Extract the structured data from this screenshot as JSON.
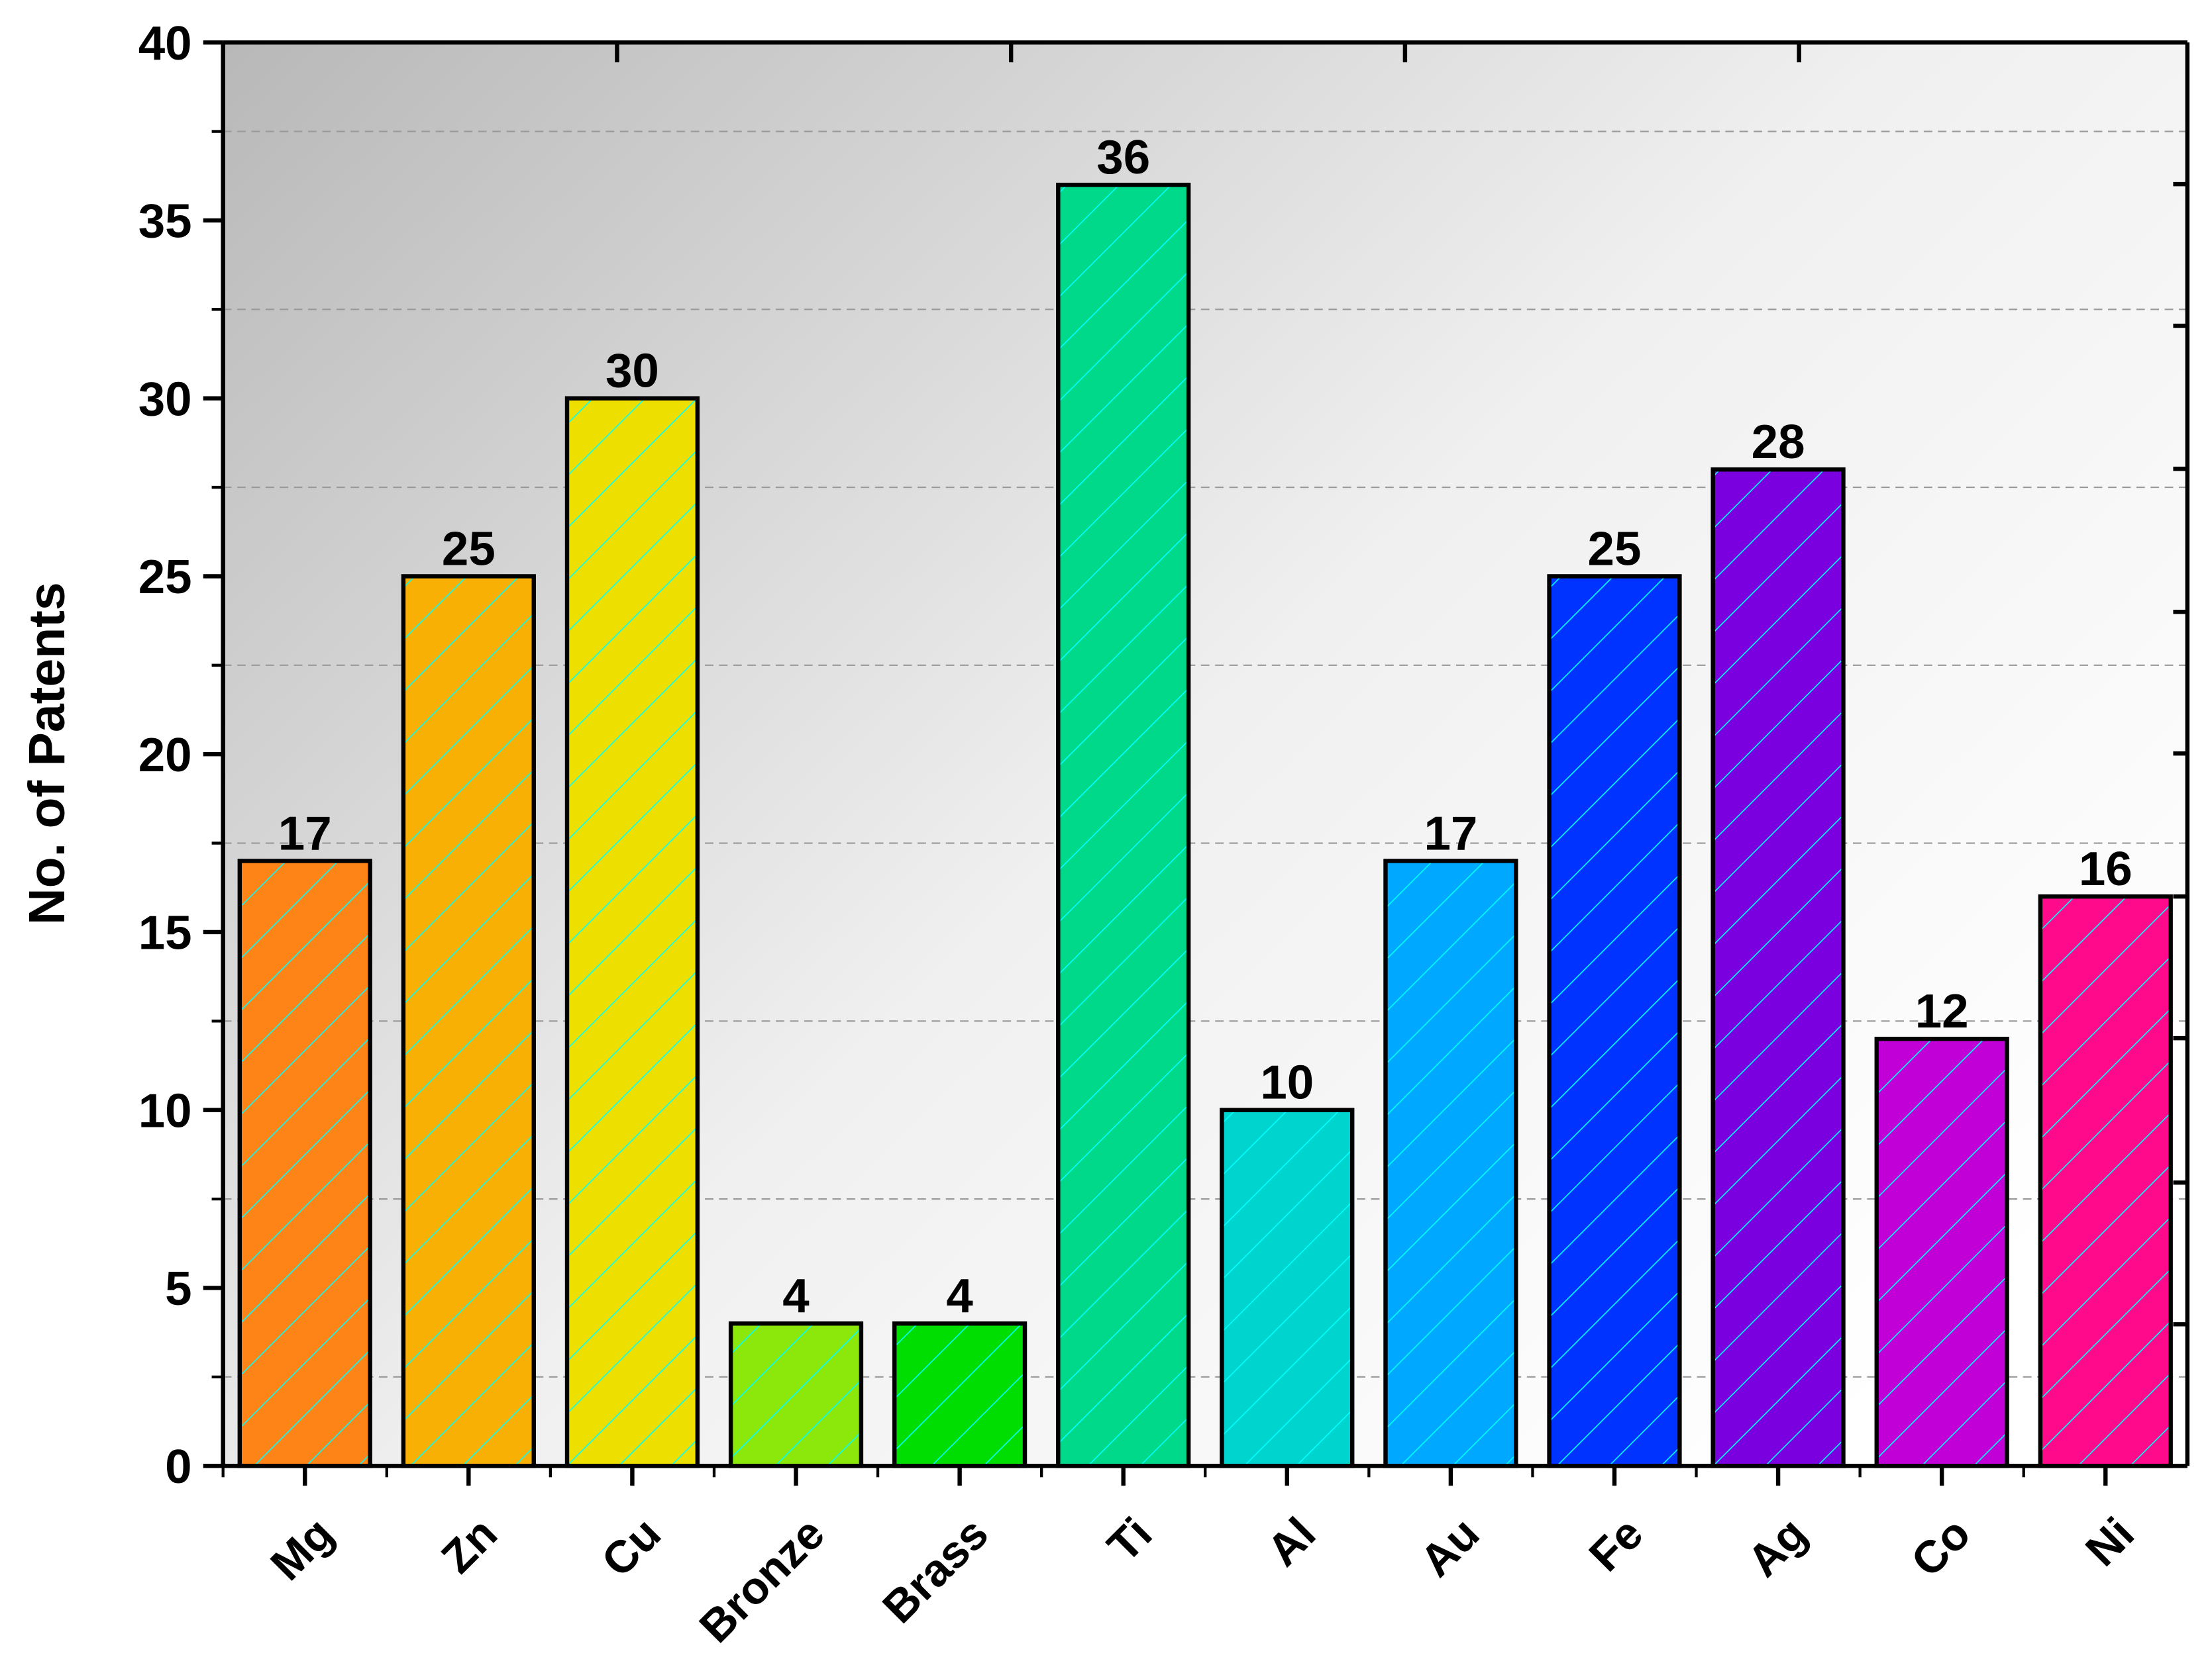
{
  "chart_data": {
    "type": "bar",
    "title": "",
    "xlabel": "",
    "ylabel": "No. of Patents",
    "ylim": [
      0,
      40
    ],
    "yticks": [
      0,
      5,
      10,
      15,
      20,
      25,
      30,
      35,
      40
    ],
    "grid": "dashed horizontal at minor ticks",
    "background": "gray-to-white gradient",
    "hatch_color": "#00FFFF",
    "categories": [
      "Mg",
      "Zn",
      "Cu",
      "Bronze",
      "Brass",
      "Ti",
      "Al",
      "Au",
      "Fe",
      "Ag",
      "Co",
      "Ni"
    ],
    "values": [
      17,
      25,
      30,
      4,
      4,
      36,
      10,
      17,
      25,
      28,
      12,
      16
    ],
    "colors": [
      "#FF8418",
      "#F9B004",
      "#EDE000",
      "#8BE80A",
      "#00DD00",
      "#00D98A",
      "#00D4CF",
      "#00A8FF",
      "#0033FF",
      "#7A00E0",
      "#C000D6",
      "#FF0A8A"
    ]
  }
}
